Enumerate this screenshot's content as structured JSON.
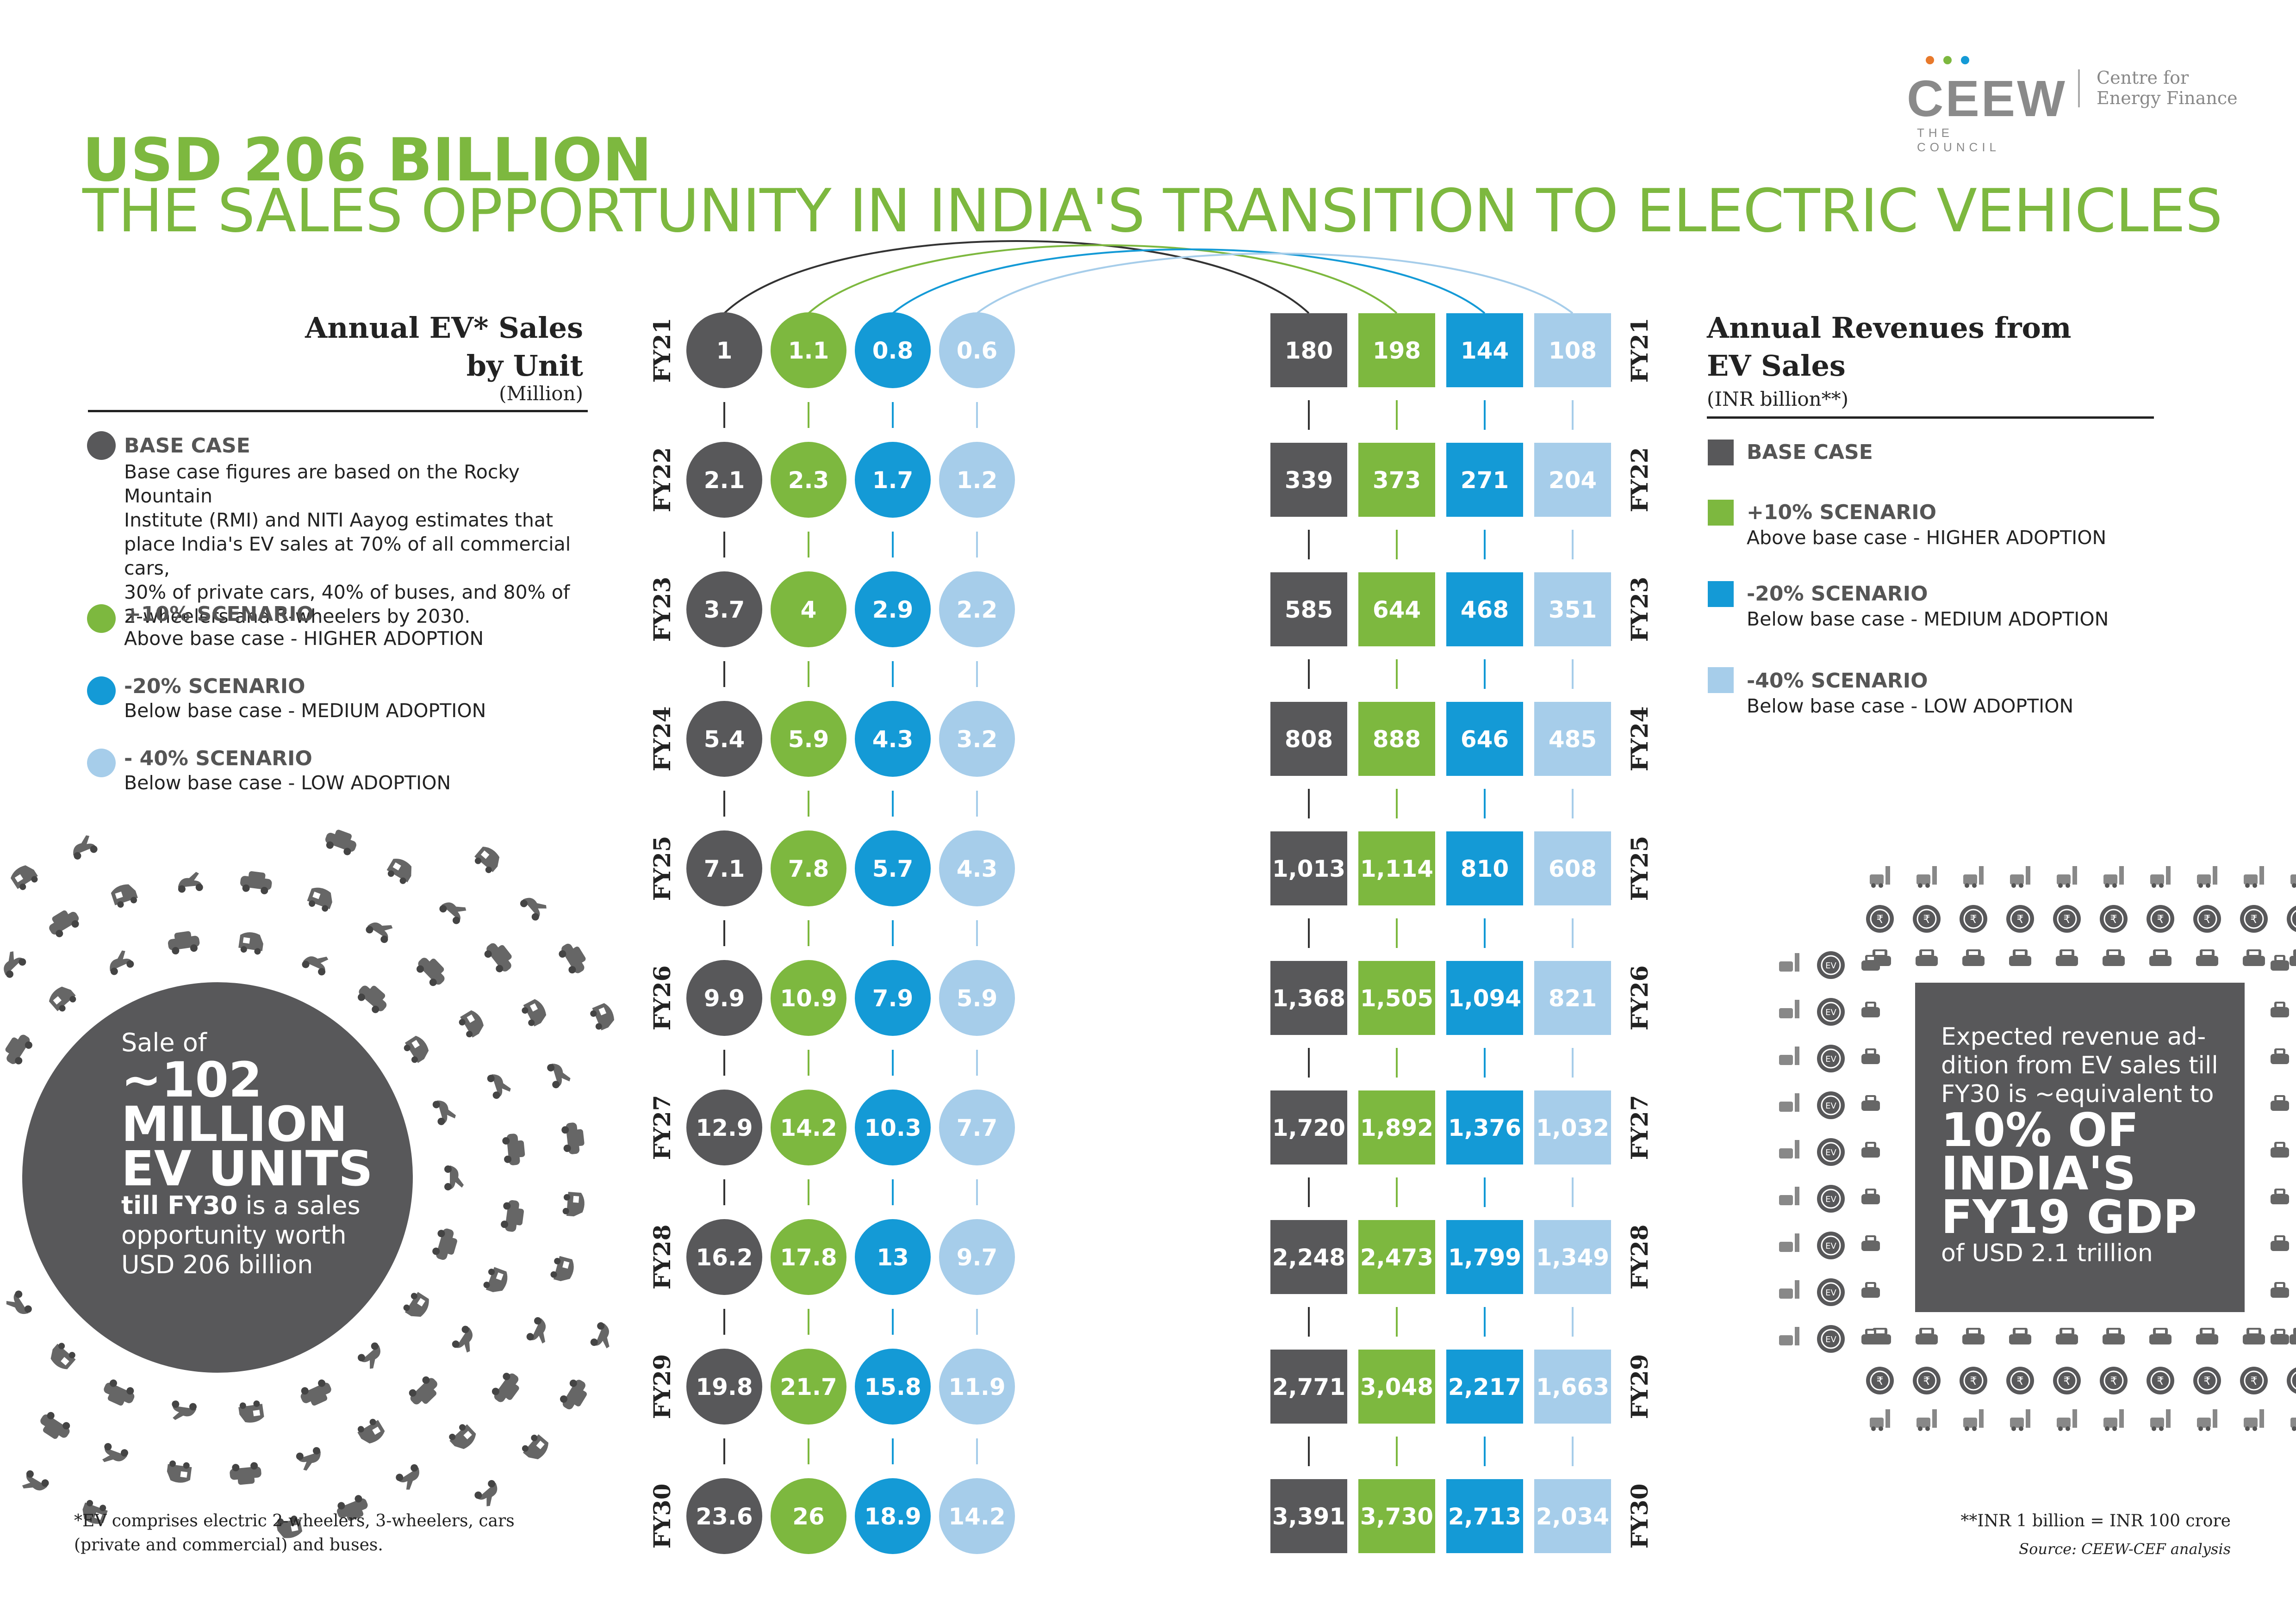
{
  "logo": {
    "name": "CEEW",
    "tagline": "THE COUNCIL",
    "partner_line1": "Centre for",
    "partner_line2": "Energy Finance"
  },
  "title": {
    "line1": "USD 206 BILLION",
    "line2": "THE SALES OPPORTUNITY IN INDIA'S TRANSITION TO ELECTRIC VEHICLES"
  },
  "colors": {
    "base": "#58585a",
    "plus10": "#7db83f",
    "minus20": "#149ad6",
    "minus40": "#a6cdea",
    "accent_green": "#7db83f",
    "text_dark": "#222222"
  },
  "left_panel": {
    "heading_line1": "Annual EV* Sales",
    "heading_line2": "by Unit",
    "unit": "(Million)",
    "legend": [
      {
        "title": "BASE CASE",
        "desc": [
          "Base case figures are based on the Rocky Mountain",
          "Institute (RMI) and NITI Aayog estimates that",
          "place India's EV sales at 70% of all commercial cars,",
          "30% of private cars, 40% of buses, and 80% of",
          "2-wheelers and 3-wheelers by 2030."
        ]
      },
      {
        "title": "+10% SCENARIO",
        "desc": [
          "Above base case - HIGHER ADOPTION"
        ]
      },
      {
        "title": "-20% SCENARIO",
        "desc": [
          "Below base case - MEDIUM ADOPTION"
        ]
      },
      {
        "title": "- 40% SCENARIO",
        "desc": [
          "Below base case - LOW ADOPTION"
        ]
      }
    ],
    "circle": {
      "line1": "Sale of",
      "line2": "~102",
      "line3": "MILLION",
      "line4": "EV UNITS",
      "line5a": "till FY30",
      "line5b": " is a sales",
      "line6": "opportunity worth",
      "line7": "USD 206 billion"
    },
    "footnote": [
      "*EV comprises electric 2-wheelers, 3-wheelers, cars",
      "(private and commercial) and buses."
    ]
  },
  "right_panel": {
    "heading_line1": "Annual Revenues from",
    "heading_line2": "EV Sales",
    "unit": "(INR billion**)",
    "legend": [
      {
        "title": "BASE CASE",
        "desc": ""
      },
      {
        "title": "+10% SCENARIO",
        "desc": "Above base case - HIGHER ADOPTION"
      },
      {
        "title": "-20% SCENARIO",
        "desc": "Below base case - MEDIUM ADOPTION"
      },
      {
        "title": "-40% SCENARIO",
        "desc": "Below base case - LOW ADOPTION"
      }
    ],
    "box": {
      "line1": "Expected revenue ad-",
      "line2": "dition from EV sales till",
      "line3": "FY30 is ~equivalent to",
      "line4": "10% OF",
      "line5": "INDIA'S",
      "line6": "FY19 GDP",
      "line7": "of USD 2.1 trillion"
    },
    "footnote1": "**INR 1 billion = INR 100 crore",
    "footnote2": "Source: CEEW-CEF analysis"
  },
  "chart_data": [
    {
      "type": "table",
      "title": "Annual EV* Sales by Unit",
      "unit": "(Million)",
      "categories": [
        "FY21",
        "FY22",
        "FY23",
        "FY24",
        "FY25",
        "FY26",
        "FY27",
        "FY28",
        "FY29",
        "FY30"
      ],
      "series": [
        {
          "name": "BASE CASE",
          "color": "#58585a",
          "values": [
            "1",
            "2.1",
            "3.7",
            "5.4",
            "7.1",
            "9.9",
            "12.9",
            "16.2",
            "19.8",
            "23.6"
          ]
        },
        {
          "name": "+10% SCENARIO",
          "color": "#7db83f",
          "values": [
            "1.1",
            "2.3",
            "4",
            "5.9",
            "7.8",
            "10.9",
            "14.2",
            "17.8",
            "21.7",
            "26"
          ]
        },
        {
          "name": "-20% SCENARIO",
          "color": "#149ad6",
          "values": [
            "0.8",
            "1.7",
            "2.9",
            "4.3",
            "5.7",
            "7.9",
            "10.3",
            "13",
            "15.8",
            "18.9"
          ]
        },
        {
          "name": "- 40% SCENARIO",
          "color": "#a6cdea",
          "values": [
            "0.6",
            "1.2",
            "2.2",
            "3.2",
            "4.3",
            "5.9",
            "7.7",
            "9.7",
            "11.9",
            "14.2"
          ]
        }
      ]
    },
    {
      "type": "table",
      "title": "Annual Revenues from EV Sales",
      "unit": "(INR billion**)",
      "categories": [
        "FY21",
        "FY22",
        "FY23",
        "FY24",
        "FY25",
        "FY26",
        "FY27",
        "FY28",
        "FY29",
        "FY30"
      ],
      "series": [
        {
          "name": "BASE CASE",
          "color": "#58585a",
          "values": [
            "180",
            "339",
            "585",
            "808",
            "1,013",
            "1,368",
            "1,720",
            "2,248",
            "2,771",
            "3,391"
          ]
        },
        {
          "name": "+10% SCENARIO",
          "color": "#7db83f",
          "values": [
            "198",
            "373",
            "644",
            "888",
            "1,114",
            "1,505",
            "1,892",
            "2,473",
            "3,048",
            "3,730"
          ]
        },
        {
          "name": "-20% SCENARIO",
          "color": "#149ad6",
          "values": [
            "144",
            "271",
            "468",
            "646",
            "810",
            "1,094",
            "1,376",
            "1,799",
            "2,217",
            "2,713"
          ]
        },
        {
          "name": "-40% SCENARIO",
          "color": "#a6cdea",
          "values": [
            "108",
            "204",
            "351",
            "485",
            "608",
            "821",
            "1,032",
            "1,349",
            "1,663",
            "2,034"
          ]
        }
      ]
    }
  ]
}
